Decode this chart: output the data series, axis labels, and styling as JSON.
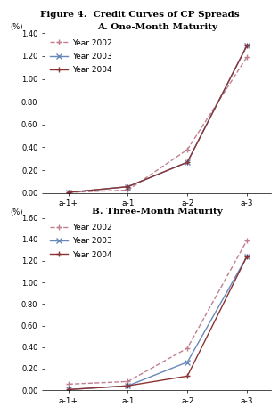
{
  "title": "Figure 4.  Credit Curves of CP Spreads",
  "panel_A_title": "A. One-Month Maturity",
  "panel_B_title": "B. Three-Month Maturity",
  "x_labels": [
    "a-1+",
    "a-1",
    "a-2",
    "a-3"
  ],
  "x_positions": [
    0,
    1,
    2,
    3
  ],
  "panel_A": {
    "year2002": [
      0.005,
      0.025,
      0.38,
      1.19
    ],
    "year2003": [
      0.005,
      0.055,
      0.27,
      1.29
    ],
    "year2004": [
      0.005,
      0.055,
      0.27,
      1.29
    ]
  },
  "panel_B": {
    "year2002": [
      0.055,
      0.08,
      0.39,
      1.39
    ],
    "year2003": [
      0.005,
      0.04,
      0.26,
      1.24
    ],
    "year2004": [
      0.005,
      0.04,
      0.13,
      1.24
    ]
  },
  "colors": {
    "year2002": "#c08090",
    "year2003": "#6688bb",
    "year2004": "#8b3333"
  },
  "linestyles": {
    "year2002": "--",
    "year2003": "-",
    "year2004": "-"
  },
  "markers": {
    "year2002": "+",
    "year2003": "x",
    "year2004": "+"
  },
  "legend_labels": [
    "Year 2002",
    "Year 2003",
    "Year 2004"
  ],
  "ylim_A": [
    0.0,
    1.4
  ],
  "yticks_A": [
    0.0,
    0.2,
    0.4,
    0.6,
    0.8,
    1.0,
    1.2,
    1.4
  ],
  "ylim_B": [
    0.0,
    1.6
  ],
  "yticks_B": [
    0.0,
    0.2,
    0.4,
    0.6,
    0.8,
    1.0,
    1.2,
    1.4,
    1.6
  ],
  "ylabel_unit": "(%)",
  "markersize_2002": 5,
  "markersize_2003": 5,
  "markersize_2004": 5,
  "linewidth": 1.0,
  "bg_color": "#ffffff"
}
